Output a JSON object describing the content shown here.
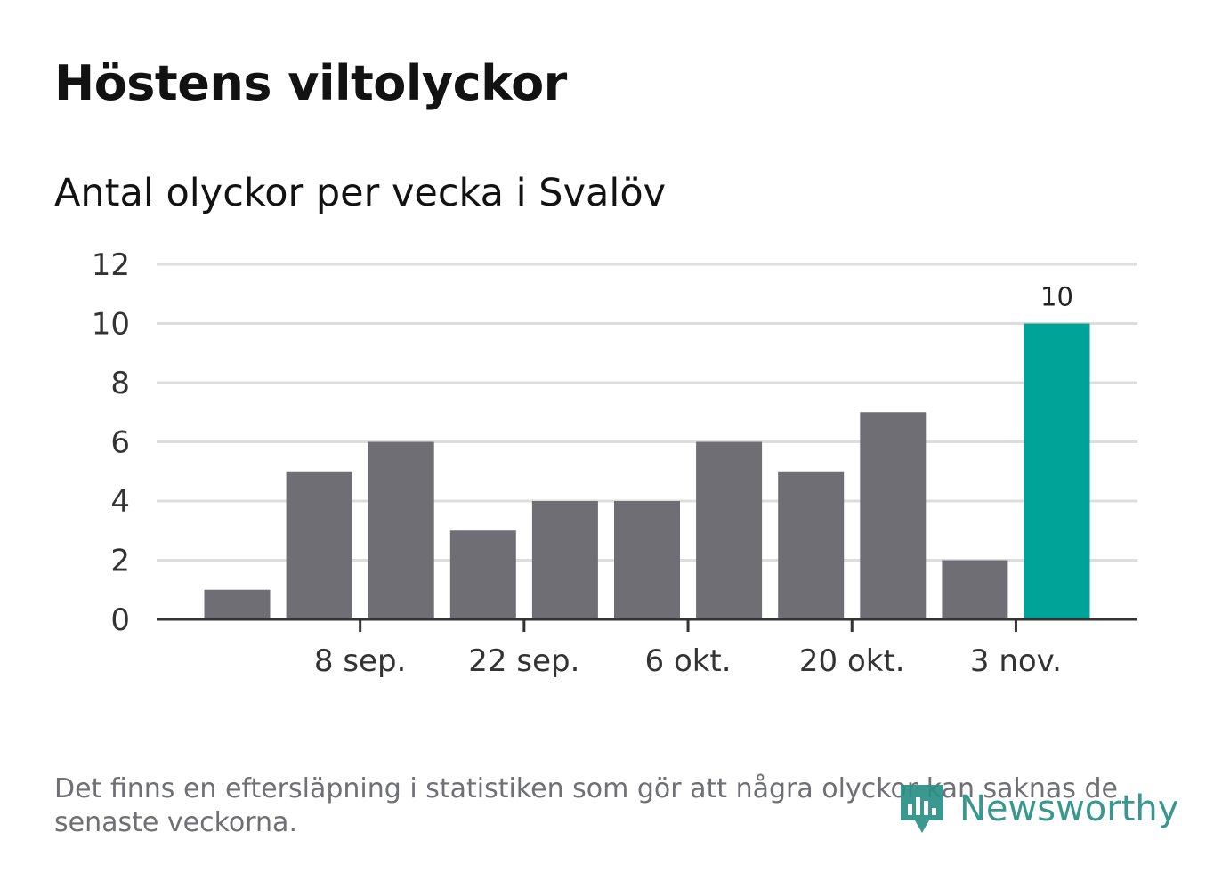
{
  "title": "Höstens viltolyckor",
  "subtitle": "Antal olyckor per vecka i Svalöv",
  "footnote": "Det finns en eftersläpning i statistiken som gör att några olyckor kan saknas de senaste veckorna.",
  "logo": {
    "text": "Newsworthy",
    "icon": "newsworthy-logo-icon"
  },
  "colors": {
    "bar": "#6f6e74",
    "highlight": "#00a398",
    "grid": "#dddddd",
    "axis": "#333333",
    "logo": "#2a8f86"
  },
  "chart_data": {
    "type": "bar",
    "title": "Höstens viltolyckor",
    "subtitle": "Antal olyckor per vecka i Svalöv",
    "xlabel": "",
    "ylabel": "",
    "x_ticks": [
      "8 sep.",
      "22 sep.",
      "6 okt.",
      "20 okt.",
      "3 nov."
    ],
    "values": [
      1,
      5,
      6,
      3,
      4,
      4,
      6,
      5,
      7,
      2,
      10
    ],
    "highlight_index": 10,
    "data_labels": [
      {
        "index": 10,
        "text": "10"
      }
    ],
    "ylim": [
      0,
      12
    ],
    "y_ticks": [
      0,
      2,
      4,
      6,
      8,
      10,
      12
    ],
    "grid": true,
    "legend": "none"
  }
}
